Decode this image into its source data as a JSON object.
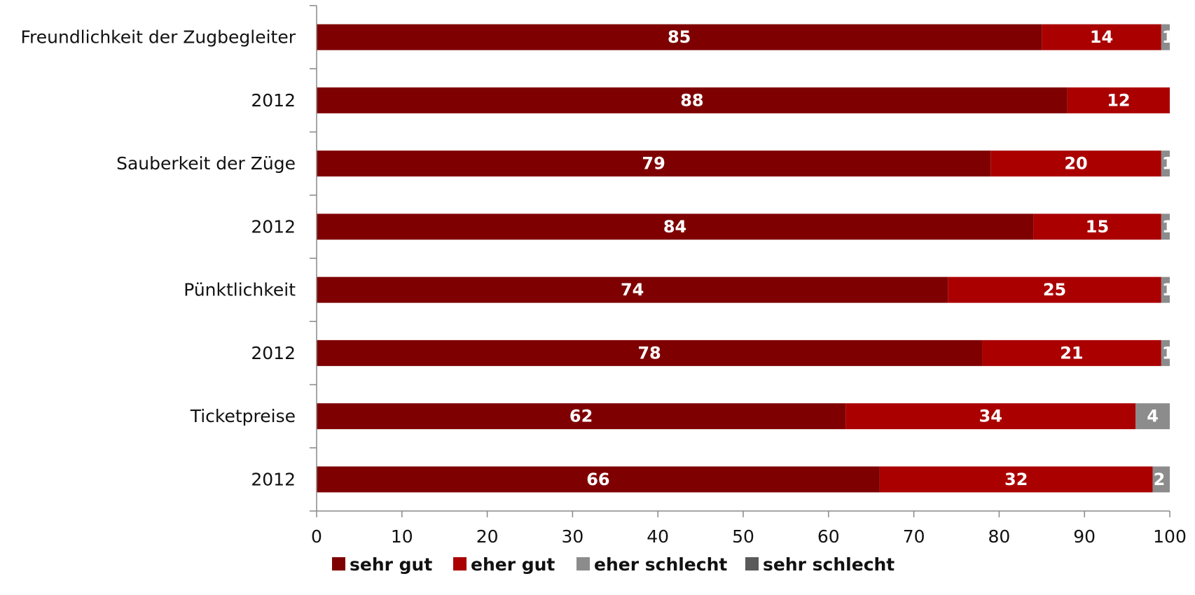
{
  "chart_data": {
    "type": "bar",
    "orientation": "horizontal",
    "stacked": true,
    "categories": [
      "Freundlichkeit der Zugbegleiter",
      "2012",
      "Sauberkeit der Züge",
      "2012",
      "Pünktlichkeit",
      "2012",
      "Ticketpreise",
      "2012"
    ],
    "series": [
      {
        "name": "sehr gut",
        "color": "#7f0000",
        "values": [
          85,
          88,
          79,
          84,
          74,
          78,
          62,
          66
        ]
      },
      {
        "name": "eher gut",
        "color": "#aa0000",
        "values": [
          14,
          12,
          20,
          15,
          25,
          21,
          34,
          32
        ]
      },
      {
        "name": "eher schlecht",
        "color": "#8c8c8c",
        "values": [
          1,
          0,
          1,
          1,
          1,
          1,
          4,
          2
        ]
      },
      {
        "name": "sehr schlecht",
        "color": "#5a5a5a",
        "values": [
          0,
          0,
          0,
          0,
          0,
          0,
          0,
          0
        ]
      }
    ],
    "xlim": [
      0,
      100
    ],
    "xticks": [
      "0",
      "10",
      "20",
      "30",
      "40",
      "50",
      "60",
      "70",
      "80",
      "90",
      "100"
    ],
    "grid": false,
    "legend_position": "bottom"
  }
}
